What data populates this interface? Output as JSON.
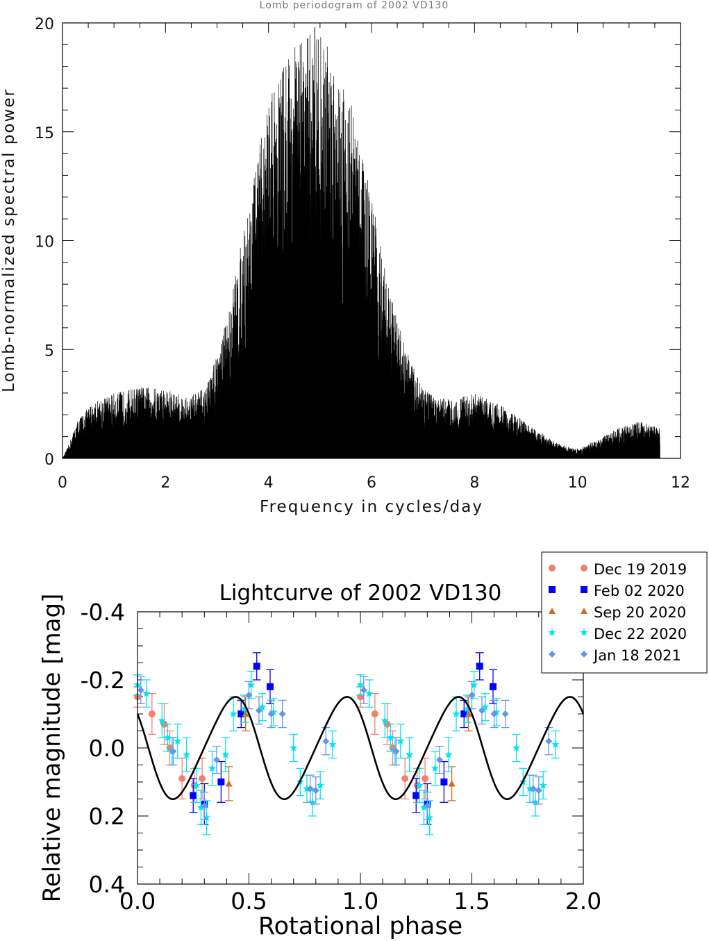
{
  "chart_data": [
    {
      "type": "line",
      "title": "Lomb periodogram of 2002 VD130",
      "xlabel": "Frequency in cycles/day",
      "ylabel": "Lomb-normalized spectral power",
      "xlim": [
        0,
        12
      ],
      "ylim": [
        0,
        20
      ],
      "xticks": [
        0,
        2,
        4,
        6,
        8,
        10,
        12
      ],
      "xtick_labels": [
        "0",
        "2",
        "4",
        "6",
        "8",
        "10",
        "12"
      ],
      "yticks": [
        0,
        5,
        10,
        15,
        20
      ],
      "ytick_labels": [
        "0",
        "5",
        "10",
        "15",
        "20"
      ],
      "data_x_range": [
        0,
        11.6
      ],
      "peak": {
        "frequency": 4.9,
        "power": 19.8
      },
      "envelope": {
        "frequency": [
          0,
          0.1,
          0.3,
          0.6,
          1.0,
          1.5,
          2.0,
          2.4,
          2.8,
          3.2,
          3.6,
          4.0,
          4.4,
          4.9,
          5.2,
          5.6,
          6.0,
          6.4,
          6.8,
          7.2,
          7.6,
          8.0,
          8.4,
          8.8,
          9.2,
          9.6,
          10.0,
          10.4,
          10.8,
          11.2,
          11.6
        ],
        "power": [
          0,
          0.5,
          1.8,
          2.6,
          3.0,
          3.3,
          3.2,
          2.8,
          3.3,
          6.5,
          11.5,
          16.5,
          18.8,
          19.8,
          19.0,
          16.5,
          12.0,
          7.2,
          4.2,
          2.8,
          2.7,
          3.0,
          2.6,
          2.0,
          1.3,
          0.7,
          0.4,
          0.9,
          1.4,
          1.7,
          1.4
        ]
      }
    },
    {
      "type": "scatter",
      "title": "Lightcurve of 2002 VD130",
      "xlabel": "Rotational phase",
      "ylabel": "Relative magnitude [mag]",
      "xlim": [
        0,
        2
      ],
      "ylim": [
        0.4,
        -0.4
      ],
      "xticks": [
        0,
        0.5,
        1.0,
        1.5,
        2.0
      ],
      "xtick_labels": [
        "0.0",
        "0.5",
        "1.0",
        "1.5",
        "2.0"
      ],
      "yticks": [
        -0.4,
        -0.2,
        0.0,
        0.2,
        0.4
      ],
      "ytick_labels": [
        "-0.4",
        "-0.2",
        "0.0",
        "0.2",
        "0.4"
      ],
      "legend_position": "top-right",
      "fit": {
        "mean": 0.0,
        "harmonics": [
          {
            "order": 2,
            "cos": -0.085,
            "sin": 0.12
          },
          {
            "order": 4,
            "cos": -0.015,
            "sin": 0.005
          }
        ]
      },
      "series": [
        {
          "name": "Dec 19 2019",
          "color": "#f08070",
          "marker": "circle",
          "points": [
            {
              "phase": 0.0,
              "mag": -0.15,
              "err": 0.03
            },
            {
              "phase": 0.065,
              "mag": -0.1,
              "err": 0.06
            },
            {
              "phase": 0.12,
              "mag": -0.07,
              "err": 0.06
            },
            {
              "phase": 0.145,
              "mag": 0.0,
              "err": 0.05
            },
            {
              "phase": 0.2,
              "mag": 0.09,
              "err": 0.06
            },
            {
              "phase": 0.255,
              "mag": 0.11,
              "err": 0.05
            },
            {
              "phase": 0.29,
              "mag": 0.09,
              "err": 0.06
            }
          ]
        },
        {
          "name": "Feb 02 2020",
          "color": "#0000ff",
          "marker": "square",
          "points": [
            {
              "phase": 0.25,
              "mag": 0.14,
              "err": 0.05
            },
            {
              "phase": 0.3,
              "mag": 0.165,
              "err": 0.06
            },
            {
              "phase": 0.375,
              "mag": 0.1,
              "err": 0.06
            },
            {
              "phase": 0.465,
              "mag": -0.1,
              "err": 0.04
            },
            {
              "phase": 0.535,
              "mag": -0.24,
              "err": 0.04
            },
            {
              "phase": 0.595,
              "mag": -0.18,
              "err": 0.05
            }
          ]
        },
        {
          "name": "Sep 20 2020",
          "color": "#d2691e",
          "marker": "triangle",
          "points": [
            {
              "phase": 0.41,
              "mag": 0.105,
              "err": 0.05
            },
            {
              "phase": 0.485,
              "mag": -0.1,
              "err": 0.05
            }
          ]
        },
        {
          "name": "Dec 22 2020",
          "color": "#00e5ee",
          "marker": "star",
          "points": [
            {
              "phase": 0.0,
              "mag": -0.185,
              "err": 0.03
            },
            {
              "phase": 0.04,
              "mag": -0.16,
              "err": 0.04
            },
            {
              "phase": 0.11,
              "mag": -0.08,
              "err": 0.05
            },
            {
              "phase": 0.135,
              "mag": -0.03,
              "err": 0.04
            },
            {
              "phase": 0.155,
              "mag": 0.01,
              "err": 0.04
            },
            {
              "phase": 0.18,
              "mag": -0.02,
              "err": 0.05
            },
            {
              "phase": 0.22,
              "mag": 0.02,
              "err": 0.05
            },
            {
              "phase": 0.265,
              "mag": 0.11,
              "err": 0.05
            },
            {
              "phase": 0.285,
              "mag": 0.175,
              "err": 0.05
            },
            {
              "phase": 0.31,
              "mag": 0.205,
              "err": 0.05
            },
            {
              "phase": 0.335,
              "mag": 0.06,
              "err": 0.05
            },
            {
              "phase": 0.395,
              "mag": 0.02,
              "err": 0.05
            },
            {
              "phase": 0.43,
              "mag": -0.1,
              "err": 0.05
            },
            {
              "phase": 0.48,
              "mag": -0.115,
              "err": 0.04
            },
            {
              "phase": 0.51,
              "mag": -0.185,
              "err": 0.04
            },
            {
              "phase": 0.56,
              "mag": -0.12,
              "err": 0.04
            },
            {
              "phase": 0.61,
              "mag": -0.105,
              "err": 0.04
            },
            {
              "phase": 0.7,
              "mag": 0.0,
              "err": 0.04
            },
            {
              "phase": 0.73,
              "mag": 0.1,
              "err": 0.04
            },
            {
              "phase": 0.76,
              "mag": 0.12,
              "err": 0.04
            },
            {
              "phase": 0.785,
              "mag": 0.16,
              "err": 0.04
            },
            {
              "phase": 0.82,
              "mag": 0.11,
              "err": 0.04
            },
            {
              "phase": 0.875,
              "mag": -0.01,
              "err": 0.04
            }
          ]
        },
        {
          "name": "Jan 18 2021",
          "color": "#6495ed",
          "marker": "diamond",
          "points": [
            {
              "phase": 0.015,
              "mag": -0.17,
              "err": 0.04
            },
            {
              "phase": 0.16,
              "mag": 0.01,
              "err": 0.04
            },
            {
              "phase": 0.3,
              "mag": 0.17,
              "err": 0.04
            },
            {
              "phase": 0.355,
              "mag": 0.035,
              "err": 0.04
            },
            {
              "phase": 0.5,
              "mag": -0.155,
              "err": 0.04
            },
            {
              "phase": 0.545,
              "mag": -0.11,
              "err": 0.04
            },
            {
              "phase": 0.6,
              "mag": -0.1,
              "err": 0.04
            },
            {
              "phase": 0.65,
              "mag": -0.1,
              "err": 0.04
            },
            {
              "phase": 0.775,
              "mag": 0.12,
              "err": 0.04
            },
            {
              "phase": 0.8,
              "mag": 0.125,
              "err": 0.04
            },
            {
              "phase": 0.845,
              "mag": -0.02,
              "err": 0.04
            }
          ]
        }
      ]
    }
  ]
}
